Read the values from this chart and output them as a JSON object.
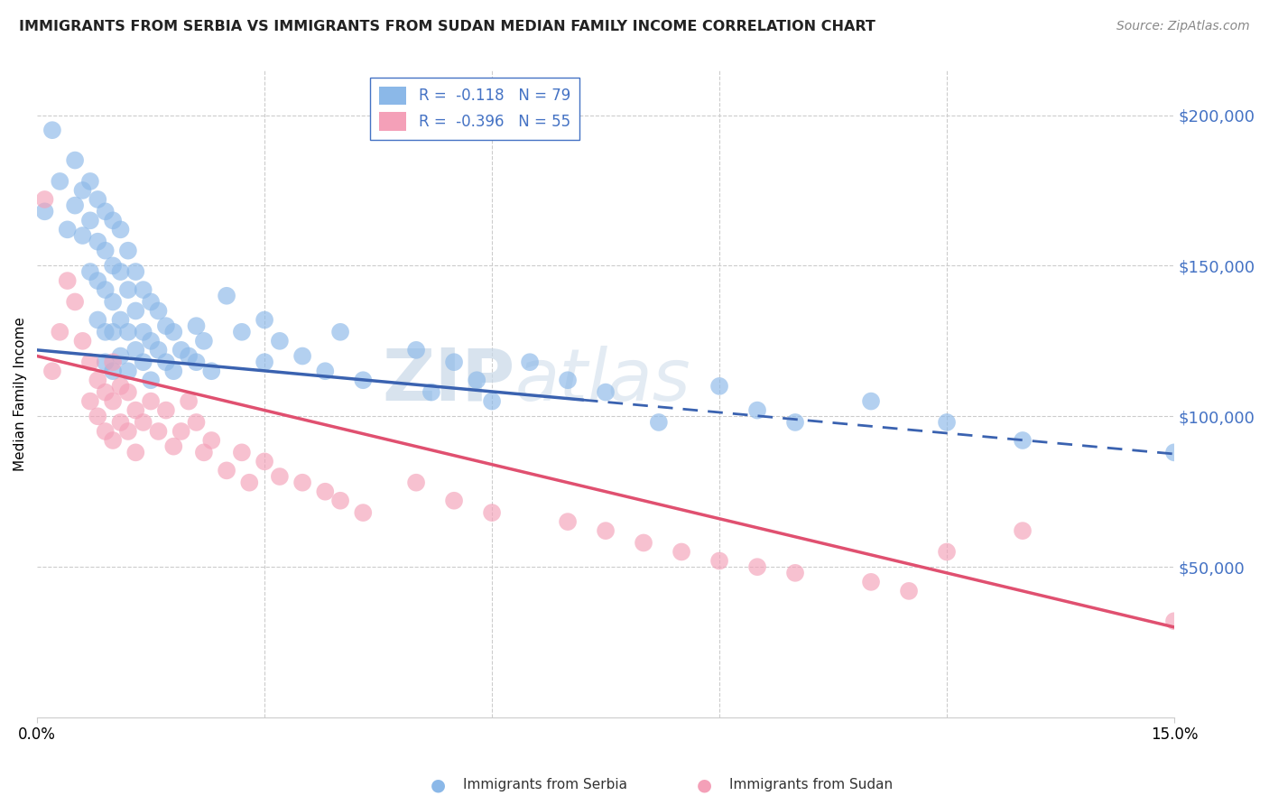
{
  "title": "IMMIGRANTS FROM SERBIA VS IMMIGRANTS FROM SUDAN MEDIAN FAMILY INCOME CORRELATION CHART",
  "source": "Source: ZipAtlas.com",
  "ylabel": "Median Family Income",
  "yticks": [
    0,
    50000,
    100000,
    150000,
    200000
  ],
  "ytick_labels": [
    "",
    "$50,000",
    "$100,000",
    "$150,000",
    "$200,000"
  ],
  "xlim": [
    0,
    0.15
  ],
  "ylim": [
    20000,
    215000
  ],
  "serbia_color": "#8bb8e8",
  "sudan_color": "#f4a0b8",
  "serbia_line_color": "#3a62b0",
  "sudan_line_color": "#e05070",
  "serbia_R": -0.118,
  "serbia_N": 79,
  "sudan_R": -0.396,
  "sudan_N": 55,
  "watermark_zip": "ZIP",
  "watermark_atlas": "atlas",
  "legend_label_1": "Immigrants from Serbia",
  "legend_label_2": "Immigrants from Sudan",
  "serbia_line_intercept": 122000,
  "serbia_line_slope": -230000,
  "serbia_line_solid_end": 0.072,
  "sudan_line_intercept": 120000,
  "sudan_line_slope": -600000,
  "serbia_scatter_x": [
    0.001,
    0.002,
    0.003,
    0.004,
    0.005,
    0.005,
    0.006,
    0.006,
    0.007,
    0.007,
    0.007,
    0.008,
    0.008,
    0.008,
    0.008,
    0.009,
    0.009,
    0.009,
    0.009,
    0.009,
    0.01,
    0.01,
    0.01,
    0.01,
    0.01,
    0.011,
    0.011,
    0.011,
    0.011,
    0.012,
    0.012,
    0.012,
    0.012,
    0.013,
    0.013,
    0.013,
    0.014,
    0.014,
    0.014,
    0.015,
    0.015,
    0.015,
    0.016,
    0.016,
    0.017,
    0.017,
    0.018,
    0.018,
    0.019,
    0.02,
    0.021,
    0.021,
    0.022,
    0.023,
    0.025,
    0.027,
    0.03,
    0.03,
    0.032,
    0.035,
    0.038,
    0.04,
    0.043,
    0.05,
    0.052,
    0.055,
    0.058,
    0.06,
    0.065,
    0.07,
    0.075,
    0.082,
    0.09,
    0.095,
    0.1,
    0.11,
    0.12,
    0.13,
    0.15
  ],
  "serbia_scatter_y": [
    168000,
    195000,
    178000,
    162000,
    185000,
    170000,
    175000,
    160000,
    178000,
    165000,
    148000,
    172000,
    158000,
    145000,
    132000,
    168000,
    155000,
    142000,
    128000,
    118000,
    165000,
    150000,
    138000,
    128000,
    115000,
    162000,
    148000,
    132000,
    120000,
    155000,
    142000,
    128000,
    115000,
    148000,
    135000,
    122000,
    142000,
    128000,
    118000,
    138000,
    125000,
    112000,
    135000,
    122000,
    130000,
    118000,
    128000,
    115000,
    122000,
    120000,
    130000,
    118000,
    125000,
    115000,
    140000,
    128000,
    132000,
    118000,
    125000,
    120000,
    115000,
    128000,
    112000,
    122000,
    108000,
    118000,
    112000,
    105000,
    118000,
    112000,
    108000,
    98000,
    110000,
    102000,
    98000,
    105000,
    98000,
    92000,
    88000
  ],
  "sudan_scatter_x": [
    0.001,
    0.002,
    0.003,
    0.004,
    0.005,
    0.006,
    0.007,
    0.007,
    0.008,
    0.008,
    0.009,
    0.009,
    0.01,
    0.01,
    0.01,
    0.011,
    0.011,
    0.012,
    0.012,
    0.013,
    0.013,
    0.014,
    0.015,
    0.016,
    0.017,
    0.018,
    0.019,
    0.02,
    0.021,
    0.022,
    0.023,
    0.025,
    0.027,
    0.028,
    0.03,
    0.032,
    0.035,
    0.038,
    0.04,
    0.043,
    0.05,
    0.055,
    0.06,
    0.07,
    0.075,
    0.08,
    0.085,
    0.09,
    0.095,
    0.1,
    0.11,
    0.115,
    0.12,
    0.13,
    0.15
  ],
  "sudan_scatter_y": [
    172000,
    115000,
    128000,
    145000,
    138000,
    125000,
    118000,
    105000,
    112000,
    100000,
    108000,
    95000,
    118000,
    105000,
    92000,
    110000,
    98000,
    108000,
    95000,
    102000,
    88000,
    98000,
    105000,
    95000,
    102000,
    90000,
    95000,
    105000,
    98000,
    88000,
    92000,
    82000,
    88000,
    78000,
    85000,
    80000,
    78000,
    75000,
    72000,
    68000,
    78000,
    72000,
    68000,
    65000,
    62000,
    58000,
    55000,
    52000,
    50000,
    48000,
    45000,
    42000,
    55000,
    62000,
    32000
  ]
}
